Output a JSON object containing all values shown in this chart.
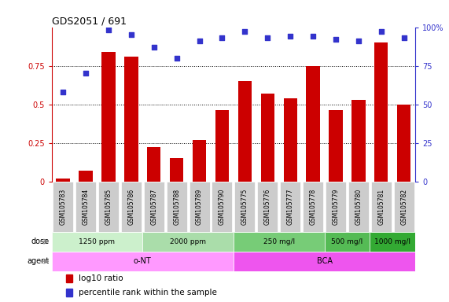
{
  "title": "GDS2051 / 691",
  "samples": [
    "GSM105783",
    "GSM105784",
    "GSM105785",
    "GSM105786",
    "GSM105787",
    "GSM105788",
    "GSM105789",
    "GSM105790",
    "GSM105775",
    "GSM105776",
    "GSM105777",
    "GSM105778",
    "GSM105779",
    "GSM105780",
    "GSM105781",
    "GSM105782"
  ],
  "log10_ratio": [
    0.02,
    0.07,
    0.84,
    0.81,
    0.22,
    0.15,
    0.27,
    0.46,
    0.65,
    0.57,
    0.54,
    0.75,
    0.46,
    0.53,
    0.9,
    0.5
  ],
  "percentile_rank": [
    58,
    70,
    98,
    95,
    87,
    80,
    91,
    93,
    97,
    93,
    94,
    94,
    92,
    91,
    97,
    93
  ],
  "bar_color": "#cc0000",
  "dot_color": "#3333cc",
  "ylim_left": [
    0,
    1.0
  ],
  "ylim_right": [
    0,
    100
  ],
  "yticks_left": [
    0,
    0.25,
    0.5,
    0.75
  ],
  "ytick_labels_left": [
    "0",
    "0.25",
    "0.5",
    "0.75"
  ],
  "yticks_right": [
    0,
    25,
    50,
    75,
    100
  ],
  "ytick_labels_right": [
    "0",
    "25",
    "50",
    "75",
    "100%"
  ],
  "dose_groups": [
    {
      "label": "1250 ppm",
      "start": 0,
      "end": 4,
      "color": "#ccf0cc"
    },
    {
      "label": "2000 ppm",
      "start": 4,
      "end": 8,
      "color": "#aaddaa"
    },
    {
      "label": "250 mg/l",
      "start": 8,
      "end": 12,
      "color": "#77cc77"
    },
    {
      "label": "500 mg/l",
      "start": 12,
      "end": 14,
      "color": "#55bb55"
    },
    {
      "label": "1000 mg/l",
      "start": 14,
      "end": 16,
      "color": "#33aa33"
    }
  ],
  "agent_groups": [
    {
      "label": "o-NT",
      "start": 0,
      "end": 8,
      "color": "#ff99ff"
    },
    {
      "label": "BCA",
      "start": 8,
      "end": 16,
      "color": "#ee55ee"
    }
  ],
  "dose_label": "dose",
  "agent_label": "agent",
  "legend_bar_label": "log10 ratio",
  "legend_dot_label": "percentile rank within the sample",
  "bg_color": "#ffffff",
  "tick_label_color_left": "#cc0000",
  "tick_label_color_right": "#3333cc",
  "xtick_bg": "#cccccc",
  "arrow_color": "#888888"
}
